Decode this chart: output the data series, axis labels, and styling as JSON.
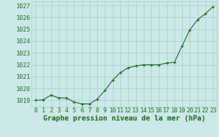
{
  "x": [
    0,
    1,
    2,
    3,
    4,
    5,
    6,
    7,
    8,
    9,
    10,
    11,
    12,
    13,
    14,
    15,
    16,
    17,
    18,
    19,
    20,
    21,
    22,
    23
  ],
  "y": [
    1019.0,
    1019.05,
    1019.45,
    1019.2,
    1019.2,
    1018.85,
    1018.7,
    1018.7,
    1019.1,
    1019.85,
    1020.7,
    1021.35,
    1021.75,
    1021.9,
    1022.0,
    1022.0,
    1022.0,
    1022.15,
    1022.2,
    1023.6,
    1024.95,
    1025.8,
    1026.3,
    1026.9
  ],
  "line_color": "#1a6b1a",
  "marker": "+",
  "bg_color": "#cce8e8",
  "grid_color": "#aacece",
  "xlabel": "Graphe pression niveau de la mer (hPa)",
  "ylabel_ticks": [
    1019,
    1020,
    1021,
    1022,
    1023,
    1024,
    1025,
    1026,
    1027
  ],
  "ylim": [
    1018.45,
    1027.35
  ],
  "xlim": [
    -0.5,
    23.5
  ],
  "tick_color": "#1a6b1a",
  "label_fontsize": 6.2,
  "xlabel_fontsize": 7.5,
  "xlabel_fontweight": "bold",
  "linewidth": 0.85,
  "markersize": 3.5,
  "markeredgewidth": 0.9
}
